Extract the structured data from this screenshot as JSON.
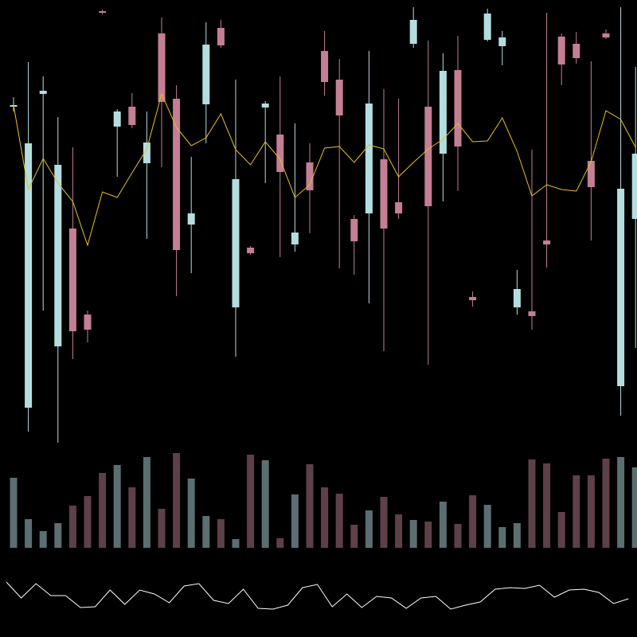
{
  "chart_data": [
    {
      "type": "candlestick",
      "up_color": "#c47f94",
      "down_color": "#b4dde0",
      "ylim": [
        0,
        560
      ],
      "open": [
        428,
        380,
        446,
        353,
        144,
        146,
        544,
        420,
        403,
        381,
        432,
        246,
        292,
        504,
        503,
        335,
        242,
        430,
        344,
        268,
        321,
        457,
        415,
        257,
        430,
        273,
        292,
        535,
        301,
        471,
        376,
        183,
        543,
        513,
        197,
        163,
        253,
        479,
        487,
        325,
        513,
        323,
        367
      ],
      "high": [
        438,
        482,
        464,
        413,
        375,
        170,
        548,
        423,
        443,
        420,
        538,
        453,
        363,
        532,
        535,
        460,
        251,
        433,
        464,
        405,
        380,
        521,
        486,
        290,
        496,
        448,
        436,
        551,
        509,
        493,
        515,
        194,
        549,
        521,
        221,
        372,
        544,
        518,
        520,
        483,
        523,
        551,
        476
      ],
      "low": [
        420,
        18,
        170,
        4,
        109,
        130,
        542,
        338,
        399,
        260,
        350,
        188,
        217,
        380,
        500,
        112,
        240,
        330,
        237,
        244,
        267,
        440,
        223,
        215,
        179,
        119,
        285,
        500,
        102,
        307,
        320,
        175,
        508,
        478,
        165,
        146,
        224,
        453,
        480,
        258,
        511,
        38,
        123
      ],
      "close": [
        426,
        48,
        442,
        125,
        273,
        165,
        546,
        401,
        426,
        355,
        518,
        436,
        278,
        429,
        525,
        174,
        249,
        425,
        391,
        253,
        356,
        496,
        460,
        285,
        292,
        360,
        306,
        505,
        426,
        367,
        472,
        187,
        510,
        502,
        174,
        169,
        258,
        514,
        505,
        358,
        518,
        75,
        285
      ],
      "ma": {
        "color": "#e8c020",
        "values": [
          428,
          322,
          361,
          330,
          307,
          252,
          319,
          312,
          343,
          373,
          442,
          400,
          377,
          387,
          417,
          372,
          353,
          382,
          360,
          312,
          328,
          374,
          376,
          356,
          378,
          373,
          338,
          356,
          373,
          385,
          405,
          382,
          383,
          412,
          370,
          314,
          328,
          322,
          320,
          357,
          421,
          410,
          375
        ]
      }
    },
    {
      "type": "bar",
      "ylim": [
        0,
        128
      ],
      "up_color": "#5e4049",
      "down_color": "#5b6e72",
      "values": [
        88,
        36,
        21,
        31,
        53,
        65,
        94,
        104,
        76,
        114,
        49,
        119,
        87,
        40,
        36,
        11,
        117,
        110,
        12,
        67,
        105,
        76,
        68,
        29,
        47,
        64,
        42,
        35,
        33,
        58,
        30,
        66,
        54,
        26,
        31,
        111,
        106,
        45,
        91,
        91,
        112,
        114,
        101
      ]
    },
    {
      "type": "line",
      "ylim": [
        0,
        100
      ],
      "color": "#ffffff",
      "values": [
        69,
        49,
        67,
        52,
        52,
        37,
        38,
        59,
        41,
        59,
        54,
        43,
        64,
        67,
        46,
        42,
        60,
        36,
        35,
        40,
        62,
        66,
        38,
        54,
        37,
        51,
        49,
        36,
        49,
        51,
        35,
        40,
        44,
        60,
        62,
        61,
        65,
        50,
        59,
        60,
        56,
        42,
        48
      ]
    }
  ]
}
